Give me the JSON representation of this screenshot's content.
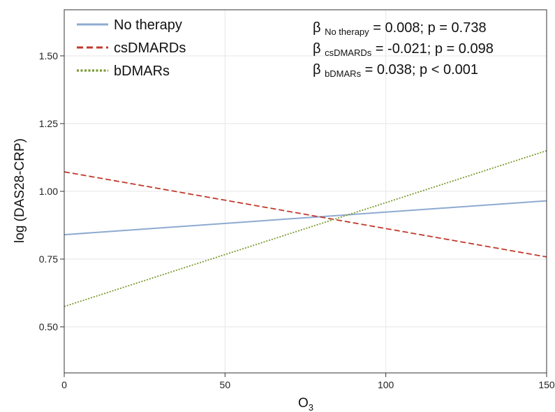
{
  "chart_data": {
    "type": "line",
    "xlabel": "O",
    "xlabel_sub": "3",
    "ylabel": "log (DAS28-CRP)",
    "xlim": [
      0,
      150
    ],
    "ylim": [
      0.33,
      1.67
    ],
    "x_ticks": [
      0,
      50,
      100,
      150
    ],
    "x_tick_labels": [
      "0",
      "50",
      "100",
      "150"
    ],
    "y_ticks": [
      0.5,
      0.75,
      1.0,
      1.25,
      1.5
    ],
    "y_tick_labels": [
      "0.50",
      "0.75",
      "1.00",
      "1.25",
      "1.50"
    ],
    "grid": true,
    "legend_position": "top-left",
    "series": [
      {
        "name": "No therapy",
        "color": "#8eaad0",
        "dash": "solid",
        "x": [
          0,
          150
        ],
        "values": [
          0.84,
          0.965
        ]
      },
      {
        "name": "csDMARDs",
        "color": "#c0392b",
        "dash": "dashed",
        "x": [
          0,
          150
        ],
        "values": [
          1.072,
          0.758
        ]
      },
      {
        "name": "bDMARs",
        "color": "#7a9a2e",
        "dash": "dotted",
        "x": [
          0,
          150
        ],
        "values": [
          0.575,
          1.15
        ]
      }
    ],
    "annotations": [
      {
        "symbol": "β",
        "sub": "No therapy",
        "text": " = 0.008; p = 0.738"
      },
      {
        "symbol": "β",
        "sub": "csDMARDs",
        "text": " = -0.021; p = 0.098"
      },
      {
        "symbol": "β",
        "sub": "bDMARs",
        "text": " = 0.038; p < 0.001"
      }
    ]
  }
}
